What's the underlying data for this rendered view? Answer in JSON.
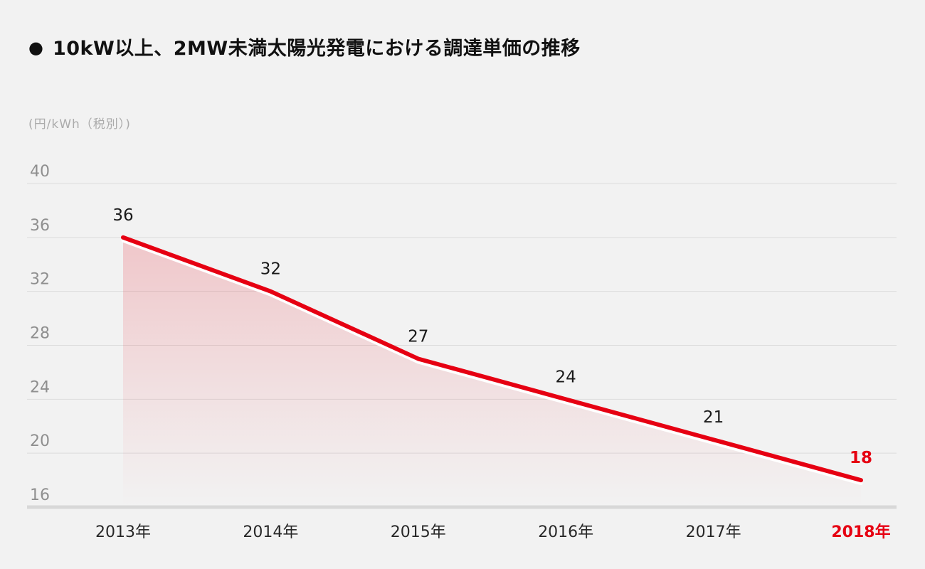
{
  "page": {
    "background_color": "#f2f2f2"
  },
  "header": {
    "bullet_icon": "●",
    "title": "10kW以上、2MW未満太陽光発電における調達単価の推移"
  },
  "colors": {
    "accent_red": "#e60012",
    "grid_line": "#dcdcdc",
    "axis_line": "#d8d8d8",
    "ytick_text": "#8f8f8f",
    "xtick_text": "#282828",
    "value_text": "#1a1a1a",
    "title_text": "#111111",
    "unit_text": "#ababab",
    "line_highlight": "#ffffff"
  },
  "chart_data": {
    "type": "area",
    "title": "10kW以上、2MW未満太陽光発電における調達単価の推移",
    "unit_label": "(円/kWh（税別）)",
    "categories": [
      "2013年",
      "2014年",
      "2015年",
      "2016年",
      "2017年",
      "2018年"
    ],
    "values": [
      36,
      32,
      27,
      24,
      21,
      18
    ],
    "value_labels": [
      "36",
      "32",
      "27",
      "24",
      "21",
      "18"
    ],
    "highlight_index": 5,
    "xlabel": "",
    "ylabel": "円/kWh（税別）",
    "yticks": [
      40,
      36,
      32,
      28,
      24,
      20,
      16
    ],
    "ylim": [
      16,
      40
    ],
    "grid": true,
    "legend_position": "none",
    "series_name": "調達単価",
    "line_color": "#e60012",
    "area_fill": "pink gradient fading downward"
  }
}
